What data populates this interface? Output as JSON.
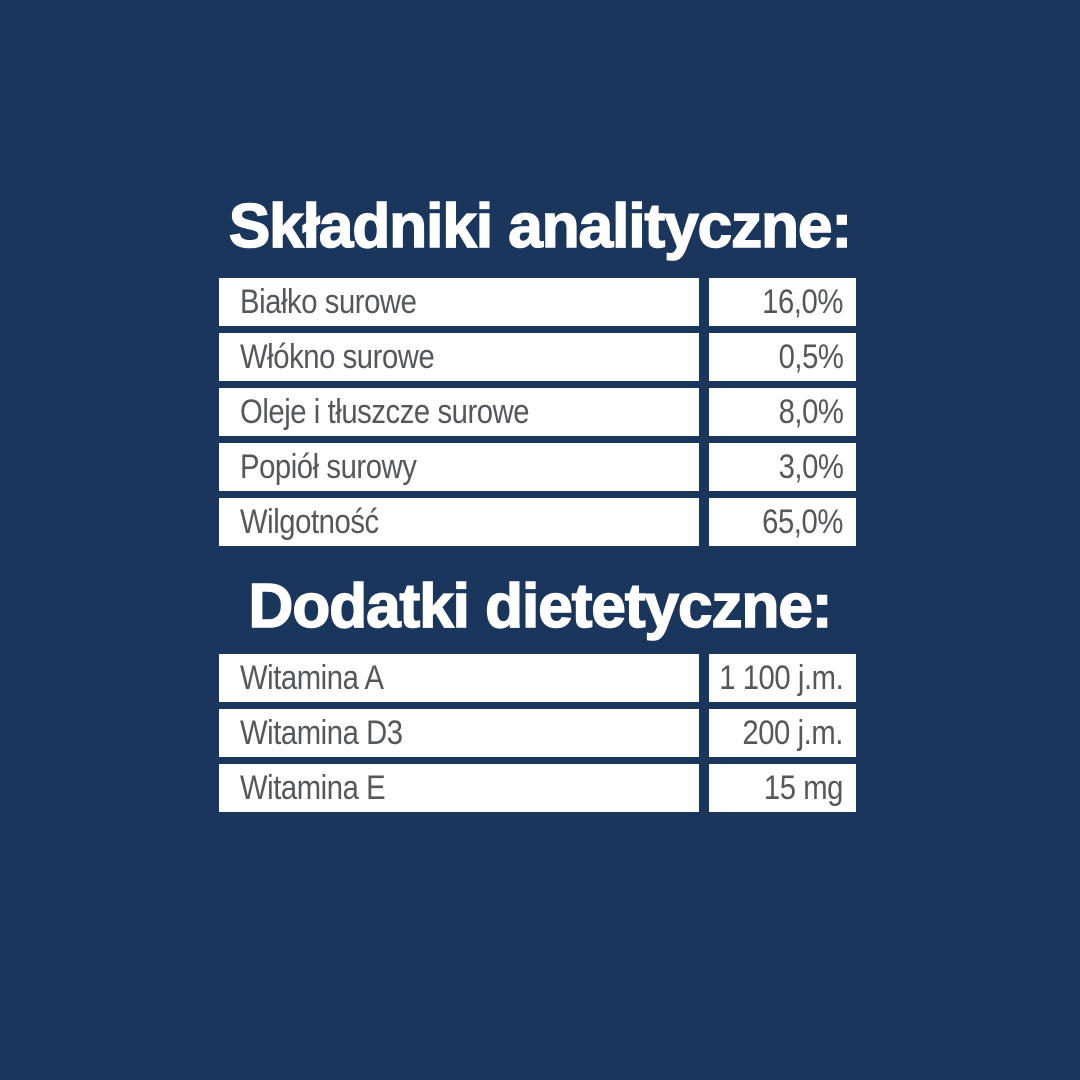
{
  "page": {
    "background_color": "#1b365c",
    "panel_color": "#fefefe",
    "heading_color": "#ffffff",
    "cell_text_color": "#55575b"
  },
  "sections": [
    {
      "title": "Składniki analityczne:",
      "rows": [
        {
          "label": "Białko surowe",
          "value": "16,0%"
        },
        {
          "label": "Włókno surowe",
          "value": "0,5%"
        },
        {
          "label": "Oleje i tłuszcze surowe",
          "value": "8,0%"
        },
        {
          "label": "Popiół surowy",
          "value": "3,0%"
        },
        {
          "label": "Wilgotność",
          "value": "65,0%"
        }
      ]
    },
    {
      "title": "Dodatki dietetyczne:",
      "rows": [
        {
          "label": "Witamina A",
          "value": "1 100 j.m."
        },
        {
          "label": "Witamina D3",
          "value": "200 j.m."
        },
        {
          "label": "Witamina E",
          "value": "15 mg"
        }
      ]
    }
  ]
}
